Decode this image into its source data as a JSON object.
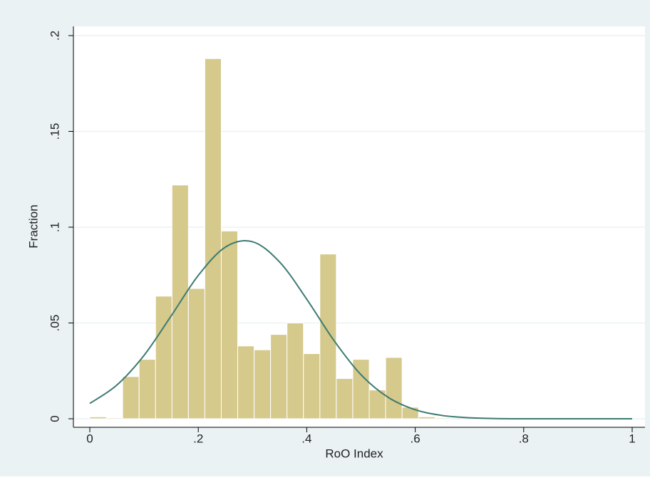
{
  "chart_data": {
    "type": "histogram",
    "xlabel": "RoO Index",
    "ylabel": "Fraction",
    "bins": [
      0,
      0.0303,
      0.0606,
      0.0909,
      0.1212,
      0.1515,
      0.1818,
      0.2121,
      0.2424,
      0.2727,
      0.303,
      0.3333,
      0.3636,
      0.3939,
      0.4242,
      0.4545,
      0.4848,
      0.5152,
      0.5455,
      0.5758,
      0.6061,
      0.6364,
      0.6667,
      0.697,
      0.7273,
      0.7576,
      0.7879,
      0.8182,
      0.8485,
      0.8788,
      0.9091,
      0.9394,
      0.9697,
      1
    ],
    "values": [
      0.001,
      0.0005,
      0.022,
      0.031,
      0.064,
      0.122,
      0.068,
      0.188,
      0.098,
      0.038,
      0.036,
      0.044,
      0.05,
      0.034,
      0.086,
      0.021,
      0.031,
      0.015,
      0.032,
      0.006,
      0.001,
      0.0005,
      0,
      0,
      0,
      0,
      0,
      0.0005,
      0,
      0,
      0.0005,
      0.0005,
      0.0005
    ],
    "color": "#d5c98c",
    "density": {
      "color": "#3d7b72",
      "x": [
        0,
        0.05,
        0.1,
        0.15,
        0.2,
        0.25,
        0.3,
        0.35,
        0.4,
        0.45,
        0.5,
        0.55,
        0.6,
        0.65,
        0.7,
        0.75,
        0.8,
        0.85,
        0.9,
        0.95,
        1
      ],
      "values": [
        0.008,
        0.0176,
        0.0331,
        0.0537,
        0.0748,
        0.0896,
        0.0924,
        0.0818,
        0.0624,
        0.0409,
        0.023,
        0.0112,
        0.0047,
        0.0017,
        0.0005,
        0.0001,
        0,
        0,
        0,
        0,
        0
      ]
    },
    "xlim": [
      0,
      1
    ],
    "xticks": [
      0,
      {
        "value": 0.2,
        "label": ".2"
      },
      {
        "value": 0.4,
        "label": ".4"
      },
      {
        "value": 0.6,
        "label": ".6"
      },
      {
        "value": 0.8,
        "label": ".8"
      },
      1
    ],
    "ylim": [
      0,
      0.2
    ],
    "yticks": [
      0,
      {
        "value": 0.05,
        "label": ".05"
      },
      {
        "value": 0.1,
        "label": ".1"
      },
      {
        "value": 0.15,
        "label": ".15"
      },
      {
        "value": 0.2,
        "label": ".2"
      }
    ],
    "grid": true
  }
}
